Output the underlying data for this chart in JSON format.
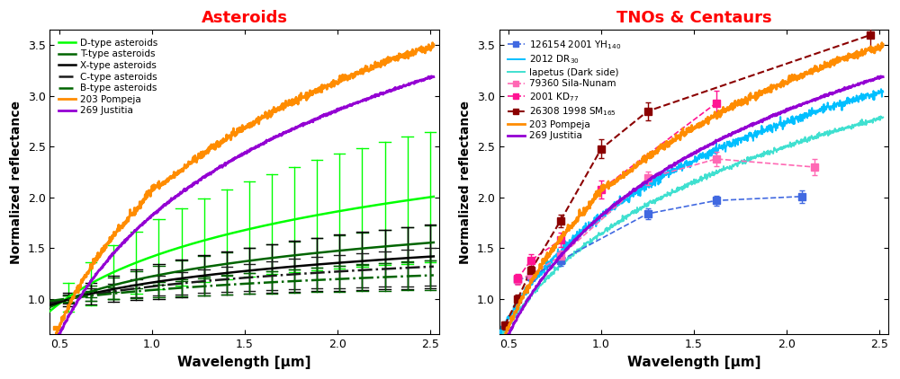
{
  "title_left": "Asteroids",
  "title_right": "TNOs & Centaurs",
  "xlabel": "Wavelength [μm]",
  "ylabel": "Normalized reflectance",
  "xlim": [
    0.45,
    2.55
  ],
  "ylim": [
    0.65,
    3.65
  ],
  "yticks": [
    1.0,
    1.5,
    2.0,
    2.5,
    3.0,
    3.5
  ],
  "xticks": [
    0.5,
    1.0,
    1.5,
    2.0,
    2.5
  ],
  "pompeja_color": "#FF8C00",
  "justitia_color": "#9400D3",
  "d_type_color": "#00FF00",
  "t_type_color": "#006400",
  "x_type_color": "#000000",
  "c_type_color": "#1a1a1a",
  "b_type_color": "#006400",
  "tno_126154_color": "#4169E1",
  "tno_2012dr30_color": "#00BFFF",
  "tno_iapetus_color": "#40E0D0",
  "tno_79360_color": "#FF69B4",
  "tno_2001kd77_color": "#FF1493",
  "tno_26308_color": "#8B0000",
  "yh140_x": [
    0.55,
    0.62,
    0.78,
    1.25,
    1.62,
    2.08
  ],
  "yh140_y": [
    1.19,
    1.22,
    1.38,
    1.84,
    1.97,
    2.01
  ],
  "yh140_yerr": [
    0.04,
    0.04,
    0.05,
    0.05,
    0.05,
    0.06
  ],
  "sila_x": [
    0.55,
    0.62,
    0.78,
    1.25,
    1.62,
    2.15
  ],
  "sila_y": [
    1.19,
    1.24,
    1.42,
    2.19,
    2.38,
    2.3
  ],
  "sila_yerr": [
    0.05,
    0.05,
    0.06,
    0.07,
    0.07,
    0.08
  ],
  "kd77_x": [
    0.55,
    0.62,
    0.78,
    1.0,
    1.62
  ],
  "kd77_y": [
    1.2,
    1.38,
    1.58,
    2.08,
    2.93
  ],
  "kd77_yerr": [
    0.05,
    0.06,
    0.07,
    0.09,
    0.12
  ],
  "sm165_x": [
    0.48,
    0.55,
    0.62,
    0.78,
    1.0,
    1.25,
    2.45
  ],
  "sm165_y": [
    0.74,
    1.0,
    1.28,
    1.77,
    2.48,
    2.85,
    3.6
  ],
  "sm165_yerr": [
    0.04,
    0.04,
    0.05,
    0.06,
    0.09,
    0.09,
    0.12
  ]
}
